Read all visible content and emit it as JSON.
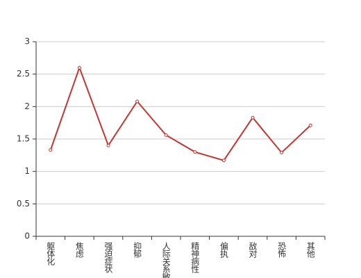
{
  "chart_data": {
    "type": "line",
    "categories": [
      "躯体化",
      "焦虑",
      "强迫症状",
      "抑郁",
      "人际关系敏感",
      "精神病性",
      "偏执",
      "敌对",
      "恐怖",
      "其他"
    ],
    "values": [
      1.33,
      2.6,
      1.4,
      2.08,
      1.56,
      1.3,
      1.17,
      1.83,
      1.29,
      1.71
    ],
    "color": "#c23531",
    "ylim": [
      0,
      3
    ],
    "yticks": [
      0,
      0.5,
      1,
      1.5,
      2,
      2.5,
      3
    ],
    "grid": true
  }
}
